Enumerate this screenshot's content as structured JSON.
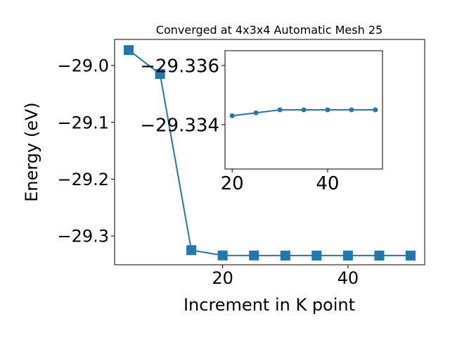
{
  "chart_data": [
    {
      "type": "line",
      "title": "Converged at 4x3x4 Automatic Mesh 25",
      "xlabel": "Increment in K point",
      "ylabel": "Energy (eV)",
      "x": [
        5,
        10,
        15,
        20,
        25,
        30,
        35,
        40,
        45,
        50
      ],
      "series": [
        {
          "name": "Energy",
          "color": "#1f77b4",
          "marker": "square",
          "values": [
            -28.973,
            -29.015,
            -29.325,
            -29.3343,
            -29.3344,
            -29.3345,
            -29.3345,
            -29.3345,
            -29.3345,
            -29.3345
          ]
        }
      ],
      "xlim": [
        2.75,
        52.25
      ],
      "xticks": [
        20,
        40
      ],
      "ylim": [
        -29.3507,
        -28.9542
      ],
      "yticks": [
        {
          "value": -29.3,
          "label": "−29.3"
        },
        {
          "value": -29.2,
          "label": "−29.2"
        },
        {
          "value": -29.1,
          "label": "−29.1"
        },
        {
          "value": -29.0,
          "label": "−29.0"
        }
      ]
    },
    {
      "type": "line",
      "inset": true,
      "x": [
        20,
        25,
        30,
        35,
        40,
        45,
        50
      ],
      "series": [
        {
          "name": "Energy",
          "color": "#1f77b4",
          "marker": "circle",
          "values": [
            -29.3343,
            -29.3344,
            -29.3345,
            -29.3345,
            -29.3345,
            -29.3345,
            -29.3345
          ]
        }
      ],
      "xlim": [
        18.5,
        51.5
      ],
      "xticks": [
        20,
        40
      ],
      "ylim": [
        -29.3325,
        -29.3365
      ],
      "yticks": [
        {
          "value": -29.334,
          "label": "−29.334"
        },
        {
          "value": -29.336,
          "label": "−29.336"
        }
      ]
    }
  ]
}
